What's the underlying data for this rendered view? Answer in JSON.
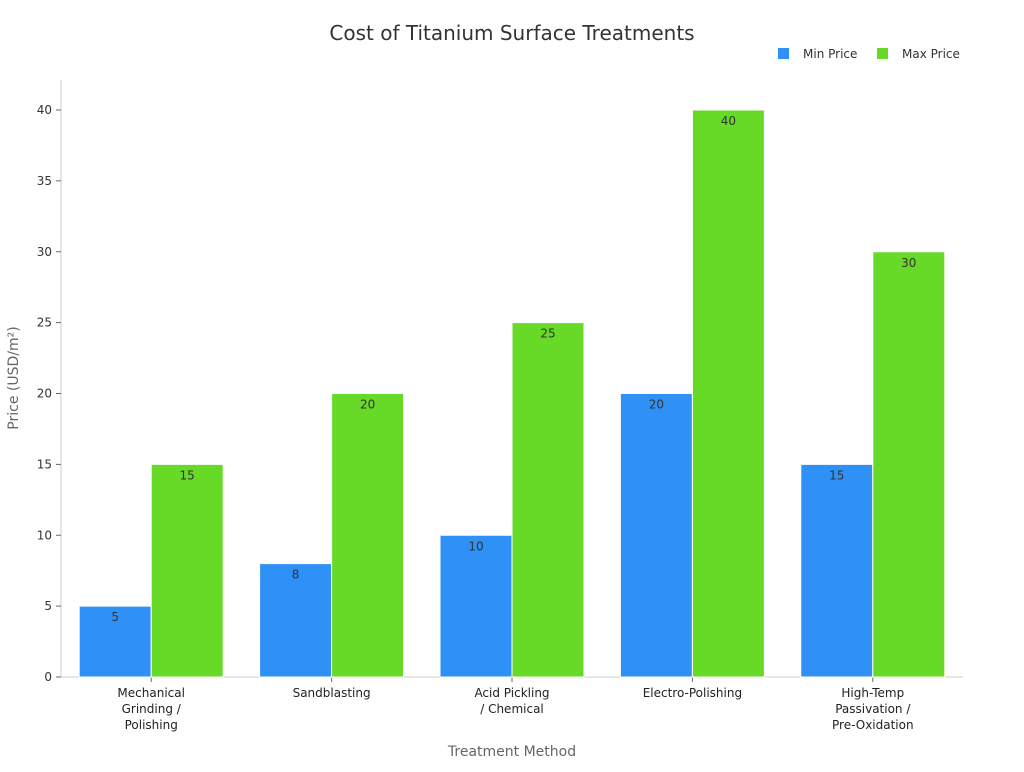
{
  "chart_data": {
    "type": "bar",
    "title": "Cost of Titanium Surface Treatments",
    "xlabel": "Treatment Method",
    "ylabel": "Price (USD/m²)",
    "ylim": [
      0,
      42
    ],
    "yticks": [
      0,
      5,
      10,
      15,
      20,
      25,
      30,
      35,
      40
    ],
    "grid": false,
    "legend_placement": "top-right",
    "categories": [
      [
        "Mechanical",
        "Grinding /",
        "Polishing"
      ],
      [
        "Sandblasting"
      ],
      [
        "Acid Pickling",
        "/ Chemical"
      ],
      [
        "Electro-Polishing"
      ],
      [
        "High-Temp",
        "Passivation /",
        "Pre-Oxidation"
      ]
    ],
    "series": [
      {
        "name": "Min Price",
        "color": "#2f91f6",
        "values": [
          5,
          8,
          10,
          20,
          15
        ]
      },
      {
        "name": "Max Price",
        "color": "#66da27",
        "values": [
          15,
          20,
          25,
          40,
          30
        ]
      }
    ]
  }
}
